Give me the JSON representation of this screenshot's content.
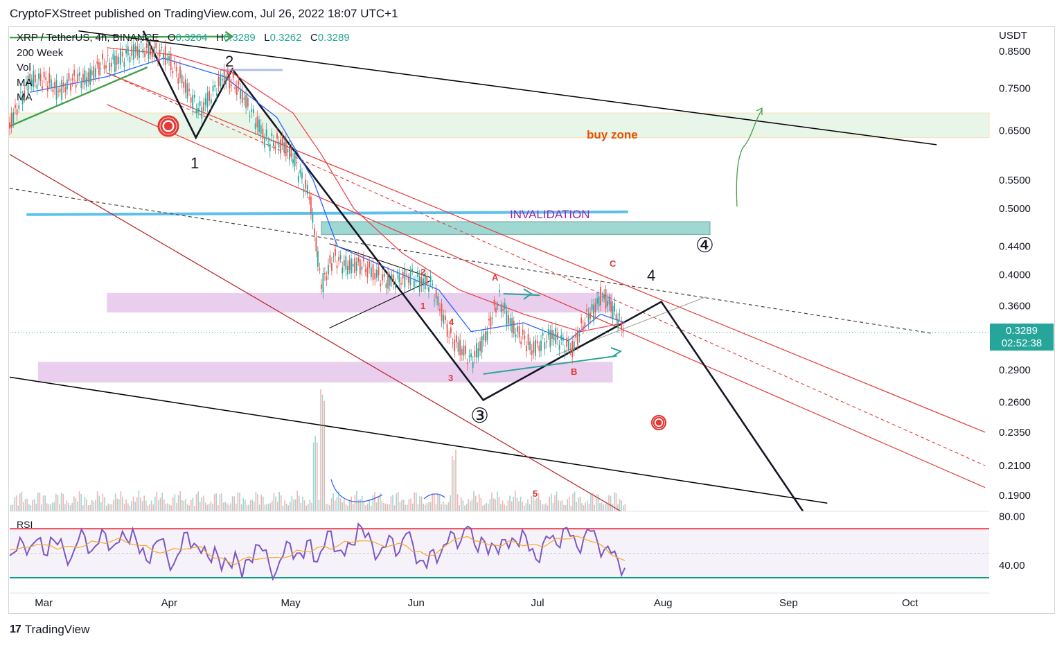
{
  "header": {
    "published": "CryptoFXStreet published on TradingView.com, Jul 26, 2022 18:07 UTC+1"
  },
  "legend": {
    "symbol": "XRP / TetherUS, 4h, BINANCE",
    "o_label": "O",
    "o_value": "0.3264",
    "h_label": "H",
    "h_value": "0.3289",
    "l_label": "L",
    "l_value": "0.3262",
    "c_label": "C",
    "c_value": "0.3289",
    "indicators": [
      "200 Week",
      "Vol",
      "MA",
      "MA"
    ]
  },
  "price_axis": {
    "currency": "USDT",
    "ticks": [
      "0.8500",
      "0.7500",
      "0.6500",
      "0.5500",
      "0.5000",
      "0.4400",
      "0.4000",
      "0.3600",
      "0.2900",
      "0.2600",
      "0.2350",
      "0.2100",
      "0.1900"
    ],
    "last_price": "0.3289",
    "countdown": "02:52:38"
  },
  "rsi": {
    "label": "RSI",
    "ticks": [
      "80.00",
      "40.00"
    ],
    "upper_band": 70,
    "lower_band": 30
  },
  "time_axis": {
    "ticks": [
      "Mar",
      "Apr",
      "May",
      "Jun",
      "Jul",
      "Aug",
      "Sep",
      "Oct"
    ]
  },
  "annotations": {
    "buy_zone": "buy zone",
    "invalidation": "INVALIDATION",
    "wave_big_1": "1",
    "wave_big_2": "2",
    "wave_big_4": "4",
    "wave_circled_3": "③",
    "wave_circled_4": "④",
    "sub_1": "1",
    "sub_2": "2",
    "sub_3": "3",
    "sub_4": "4",
    "sub_5": "5",
    "abc_a": "A",
    "abc_b": "B",
    "abc_c": "C"
  },
  "footer": {
    "brand": "TradingView",
    "logo": "17"
  },
  "colors": {
    "up": "#26a69a",
    "down": "#ef5350",
    "rsi_line": "#7e57c2",
    "rsi_upper": "#f23645",
    "rsi_lower": "#089981",
    "buy_zone": "#e8f5e9",
    "purple_zone": "#e1bee7",
    "teal_zone": "#80cbc4",
    "invalidation": "#9c27b0",
    "buy_zone_text": "#e65100",
    "ma_blue": "#2962ff",
    "ma_red": "#f23645"
  },
  "chart_data": {
    "type": "candlestick",
    "title": "XRP / TetherUS, 4h, BINANCE",
    "ylabel": "USDT",
    "y_scale": "log",
    "ylim": [
      0.18,
      0.92
    ],
    "x_range": [
      "2022-02-24",
      "2022-10-24"
    ],
    "price_path": [
      [
        "2022-02-24",
        0.66
      ],
      [
        "2022-03-01",
        0.78
      ],
      [
        "2022-03-08",
        0.75
      ],
      [
        "2022-03-15",
        0.78
      ],
      [
        "2022-03-22",
        0.83
      ],
      [
        "2022-03-28",
        0.86
      ],
      [
        "2022-04-03",
        0.84
      ],
      [
        "2022-04-08",
        0.76
      ],
      [
        "2022-04-12",
        0.7
      ],
      [
        "2022-04-18",
        0.78
      ],
      [
        "2022-04-22",
        0.74
      ],
      [
        "2022-04-28",
        0.64
      ],
      [
        "2022-05-05",
        0.6
      ],
      [
        "2022-05-09",
        0.52
      ],
      [
        "2022-05-12",
        0.39
      ],
      [
        "2022-05-15",
        0.42
      ],
      [
        "2022-05-22",
        0.41
      ],
      [
        "2022-05-28",
        0.39
      ],
      [
        "2022-06-03",
        0.4
      ],
      [
        "2022-06-08",
        0.39
      ],
      [
        "2022-06-13",
        0.32
      ],
      [
        "2022-06-18",
        0.3
      ],
      [
        "2022-06-22",
        0.33
      ],
      [
        "2022-06-25",
        0.37
      ],
      [
        "2022-06-29",
        0.33
      ],
      [
        "2022-07-03",
        0.31
      ],
      [
        "2022-07-08",
        0.33
      ],
      [
        "2022-07-13",
        0.31
      ],
      [
        "2022-07-17",
        0.35
      ],
      [
        "2022-07-20",
        0.37
      ],
      [
        "2022-07-23",
        0.36
      ],
      [
        "2022-07-26",
        0.3289
      ]
    ],
    "ma_blue_path": [
      [
        "2022-03-01",
        0.74
      ],
      [
        "2022-03-20",
        0.78
      ],
      [
        "2022-04-03",
        0.83
      ],
      [
        "2022-04-18",
        0.78
      ],
      [
        "2022-05-01",
        0.68
      ],
      [
        "2022-05-10",
        0.55
      ],
      [
        "2022-05-16",
        0.44
      ],
      [
        "2022-06-01",
        0.4
      ],
      [
        "2022-06-10",
        0.38
      ],
      [
        "2022-06-18",
        0.33
      ],
      [
        "2022-07-01",
        0.34
      ],
      [
        "2022-07-12",
        0.32
      ],
      [
        "2022-07-20",
        0.35
      ],
      [
        "2022-07-26",
        0.34
      ]
    ],
    "ma_red_path": [
      [
        "2022-03-20",
        0.86
      ],
      [
        "2022-04-05",
        0.84
      ],
      [
        "2022-04-20",
        0.79
      ],
      [
        "2022-05-05",
        0.69
      ],
      [
        "2022-05-12",
        0.6
      ],
      [
        "2022-05-20",
        0.5
      ],
      [
        "2022-06-01",
        0.43
      ],
      [
        "2022-06-15",
        0.38
      ],
      [
        "2022-07-01",
        0.35
      ],
      [
        "2022-07-15",
        0.33
      ],
      [
        "2022-07-26",
        0.34
      ]
    ],
    "buy_zone_range": [
      0.635,
      0.69
    ],
    "invalidation_level": 0.492,
    "teal_box": {
      "x": [
        "2022-05-12",
        "2022-08-16"
      ],
      "y": [
        0.458,
        0.478
      ]
    },
    "purple_zones": [
      {
        "x": [
          "2022-03-20",
          "2022-07-23"
        ],
        "y": [
          0.352,
          0.376
        ]
      },
      {
        "x": [
          "2022-03-03",
          "2022-07-23"
        ],
        "y": [
          0.278,
          0.298
        ]
      }
    ],
    "rsi": {
      "ylim": [
        22,
        82
      ],
      "path": [
        48,
        52,
        58,
        55,
        61,
        49,
        63,
        57,
        51,
        46,
        60,
        64,
        52,
        58,
        66,
        55,
        59,
        62,
        70,
        50,
        44,
        56,
        61,
        48,
        41,
        52,
        67,
        58,
        50,
        47,
        55,
        36,
        42,
        51,
        30,
        45,
        57,
        52,
        40,
        35,
        48,
        58,
        50,
        46,
        61,
        43,
        55,
        68,
        52,
        48,
        57,
        74,
        63,
        58,
        49,
        55,
        62,
        51,
        66,
        57,
        44,
        38,
        53,
        49,
        58,
        66,
        60,
        72,
        57,
        63,
        49,
        56,
        61,
        54,
        60,
        69,
        52,
        45,
        58,
        62,
        57,
        70,
        64,
        55,
        63,
        68,
        59,
        53,
        50,
        44,
        38
      ]
    }
  }
}
